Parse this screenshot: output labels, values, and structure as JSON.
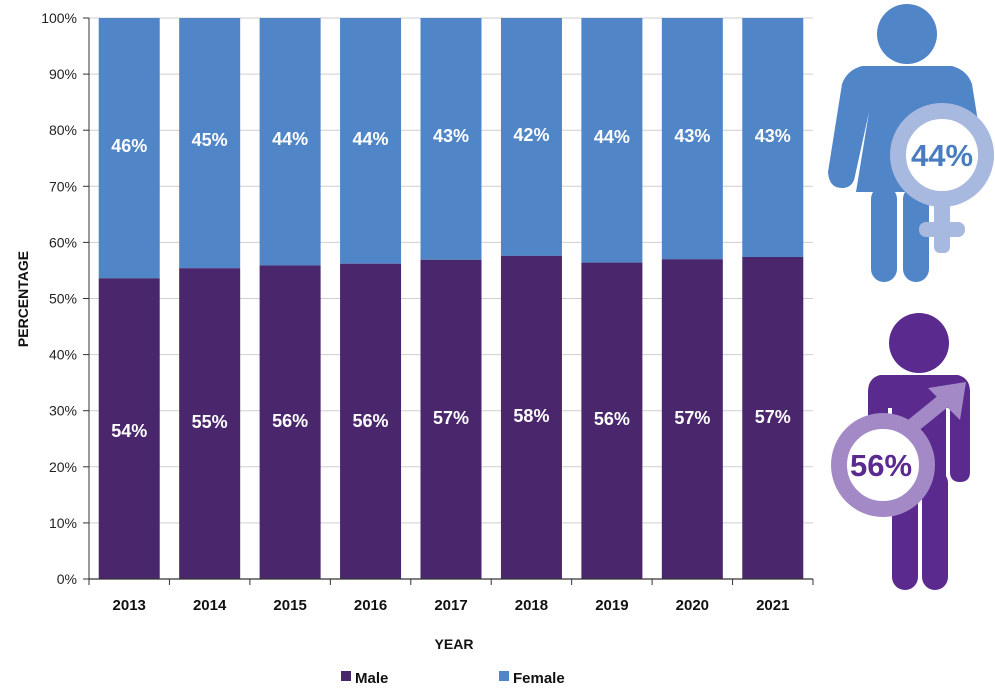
{
  "chart_data": {
    "type": "bar",
    "stacked": true,
    "categories": [
      "2013",
      "2014",
      "2015",
      "2016",
      "2017",
      "2018",
      "2019",
      "2020",
      "2021"
    ],
    "series": [
      {
        "name": "Male",
        "values": [
          54,
          55,
          56,
          56,
          57,
          58,
          56,
          57,
          57
        ],
        "plotted": [
          53.6,
          55.4,
          55.9,
          56.2,
          56.9,
          57.6,
          56.4,
          57.0,
          57.4
        ],
        "labels": [
          "54%",
          "55%",
          "56%",
          "56%",
          "57%",
          "58%",
          "56%",
          "57%",
          "57%"
        ],
        "color": "#4a266c"
      },
      {
        "name": "Female",
        "values": [
          46,
          45,
          44,
          44,
          43,
          42,
          44,
          43,
          43
        ],
        "labels": [
          "46%",
          "45%",
          "44%",
          "44%",
          "43%",
          "42%",
          "44%",
          "43%",
          "43%"
        ],
        "color": "#5085c7"
      }
    ],
    "ylim": [
      0,
      100
    ],
    "yticks": [
      "0%",
      "10%",
      "20%",
      "30%",
      "40%",
      "50%",
      "60%",
      "70%",
      "80%",
      "90%",
      "100%"
    ],
    "xlabel": "YEAR",
    "ylabel": "PERCENTAGE",
    "legend": {
      "position": "bottom",
      "entries": [
        "Male",
        "Female"
      ]
    },
    "grid": true
  },
  "icons": {
    "female": {
      "label": "44%",
      "body_color": "#5085c7",
      "symbol_color": "#a8b9e0",
      "text_color": "#4a7cc0",
      "icon": "female-person-icon"
    },
    "male": {
      "label": "56%",
      "body_color": "#5a2a8f",
      "symbol_color": "#a38ac6",
      "text_color": "#5a2a8f",
      "icon": "male-person-icon"
    }
  }
}
